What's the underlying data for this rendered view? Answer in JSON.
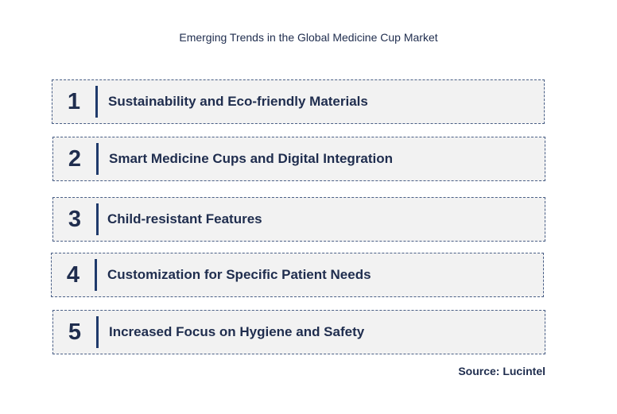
{
  "title": "Emerging Trends in the Global Medicine Cup Market",
  "trends": [
    {
      "number": "1",
      "label": "Sustainability and Eco-friendly Materials"
    },
    {
      "number": "2",
      "label": "Smart Medicine Cups and Digital Integration"
    },
    {
      "number": "3",
      "label": "Child-resistant Features"
    },
    {
      "number": "4",
      "label": "Customization for Specific Patient Needs"
    },
    {
      "number": "5",
      "label": "Increased Focus on Hygiene and Safety"
    }
  ],
  "source": "Source: Lucintel"
}
